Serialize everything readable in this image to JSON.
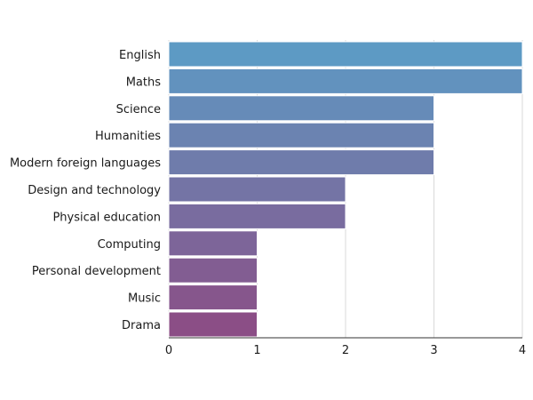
{
  "chart_data": {
    "type": "bar",
    "orientation": "horizontal",
    "categories": [
      "English",
      "Maths",
      "Science",
      "Humanities",
      "Modern foreign languages",
      "Design and technology",
      "Physical education",
      "Computing",
      "Personal development",
      "Music",
      "Drama"
    ],
    "values": [
      4,
      4,
      3,
      3,
      3,
      2,
      2,
      1,
      1,
      1,
      1
    ],
    "xlim": [
      0,
      4
    ],
    "xticks": [
      0,
      1,
      2,
      3,
      4
    ],
    "grid": "vertical",
    "colors": {
      "gradient_start": "#5d9ac4",
      "gradient_end": "#8b4e86"
    },
    "title": "",
    "xlabel": "",
    "ylabel": ""
  }
}
